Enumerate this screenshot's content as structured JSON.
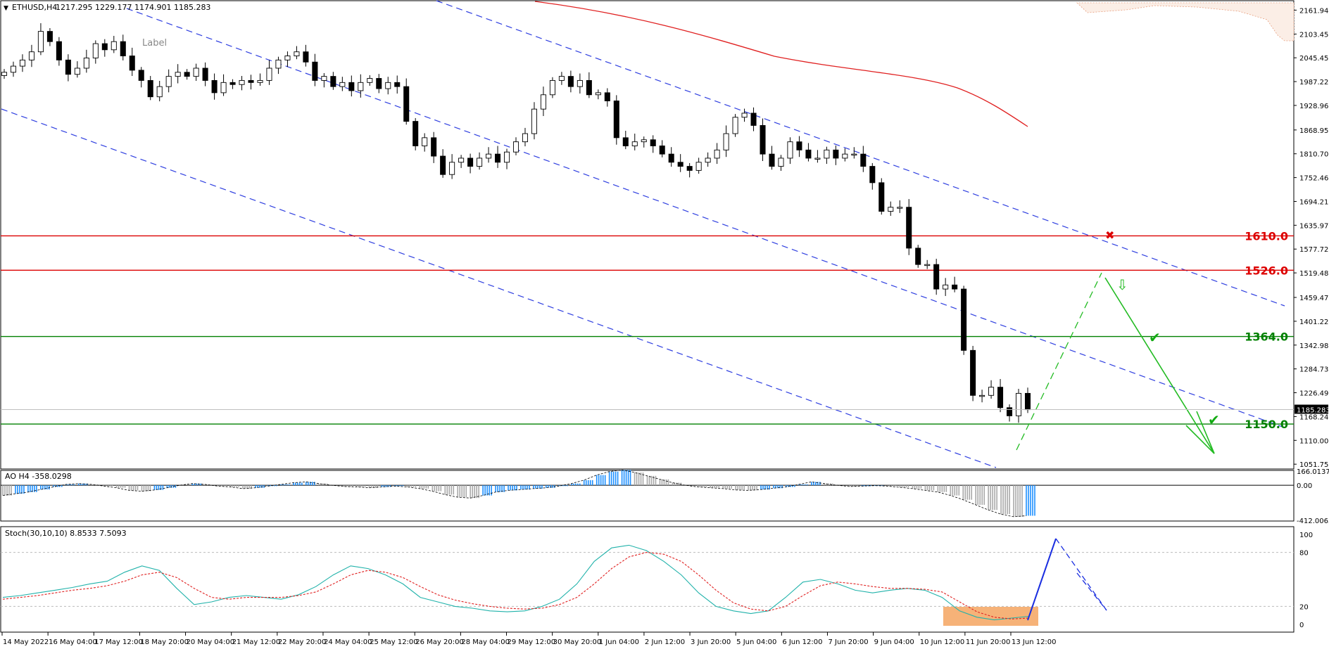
{
  "chart_data": [
    {
      "type": "candlestick",
      "symbol_label": "ETHUSD,H4",
      "ohlc_label": "1217.295 1229.177 1174.901 1185.283",
      "object_label": "Label",
      "ylim": [
        1040,
        2185
      ],
      "y_ticks": [
        "2161.940",
        "2103.455",
        "2045.450",
        "1987.220",
        "1928.960",
        "1868.950",
        "1810.705",
        "1752.460",
        "1694.215",
        "1635.970",
        "1577.725",
        "1519.480",
        "1459.470",
        "1401.225",
        "1342.980",
        "1284.735",
        "1226.490",
        "1168.245",
        "1110.000",
        "1051.755"
      ],
      "current_price_label": "1185.283",
      "x_ticks": [
        "14 May 2022",
        "16 May 04:00",
        "17 May 12:00",
        "18 May 20:00",
        "20 May 04:00",
        "21 May 12:00",
        "22 May 20:00",
        "24 May 04:00",
        "25 May 12:00",
        "26 May 20:00",
        "28 May 04:00",
        "29 May 12:00",
        "30 May 20:00",
        "1 Jun 04:00",
        "2 Jun 12:00",
        "3 Jun 20:00",
        "5 Jun 04:00",
        "6 Jun 12:00",
        "7 Jun 20:00",
        "9 Jun 04:00",
        "10 Jun 12:00",
        "11 Jun 20:00",
        "13 Jun 12:00"
      ],
      "levels": [
        {
          "value": 1610,
          "label": "1610.0",
          "color": "#dd0000"
        },
        {
          "value": 1526,
          "label": "1526.0",
          "color": "#dd0000"
        },
        {
          "value": 1364,
          "label": "1364.0",
          "color": "#008000"
        },
        {
          "value": 1150,
          "label": "1150.0",
          "color": "#008000"
        }
      ],
      "candles_close": [
        2010,
        2025,
        2040,
        2060,
        2110,
        2085,
        2040,
        2005,
        2020,
        2045,
        2080,
        2065,
        2085,
        2050,
        2015,
        1990,
        1950,
        1975,
        2000,
        2010,
        2000,
        2020,
        1990,
        1960,
        1985,
        1980,
        1990,
        1985,
        1990,
        2020,
        2040,
        2050,
        2060,
        2035,
        1990,
        2000,
        1975,
        1985,
        1965,
        1985,
        1995,
        1970,
        1985,
        1975,
        1890,
        1830,
        1850,
        1805,
        1760,
        1790,
        1800,
        1780,
        1800,
        1810,
        1790,
        1815,
        1840,
        1860,
        1920,
        1955,
        1990,
        2000,
        1975,
        1990,
        1955,
        1960,
        1940,
        1850,
        1830,
        1840,
        1845,
        1830,
        1810,
        1790,
        1780,
        1770,
        1790,
        1800,
        1820,
        1860,
        1900,
        1910,
        1880,
        1810,
        1780,
        1800,
        1840,
        1820,
        1800,
        1800,
        1820,
        1800,
        1810,
        1810,
        1780,
        1740,
        1670,
        1680,
        1680,
        1580,
        1540,
        1540,
        1480,
        1490,
        1480,
        1330,
        1220,
        1220,
        1240,
        1190,
        1170,
        1225,
        1185
      ]
    },
    {
      "type": "bar",
      "label": "AO H4  -358.0298",
      "y_ticks": [
        "166.0137",
        "0.00",
        "-412.0063"
      ],
      "ylim": [
        -412.0063,
        166.0137
      ],
      "values": [
        -120,
        -100,
        -80,
        -50,
        -20,
        10,
        20,
        10,
        -10,
        -30,
        -60,
        -70,
        -55,
        -30,
        0,
        20,
        10,
        -10,
        -20,
        -40,
        -30,
        -10,
        10,
        30,
        40,
        20,
        0,
        -15,
        -20,
        -30,
        -20,
        -10,
        -20,
        -40,
        -70,
        -110,
        -140,
        -150,
        -120,
        -80,
        -60,
        -50,
        -40,
        -30,
        -10,
        20,
        60,
        120,
        160,
        180,
        150,
        110,
        70,
        30,
        0,
        -20,
        -30,
        -40,
        -55,
        -60,
        -50,
        -35,
        -20,
        10,
        40,
        20,
        0,
        -15,
        -10,
        -5,
        -10,
        -25,
        -40,
        -60,
        -80,
        -120,
        -170,
        -230,
        -290,
        -340,
        -370,
        -358
      ]
    },
    {
      "type": "line",
      "label": "Stoch(30,10,10) 8.8533 7.5093",
      "y_ticks": [
        "100",
        "80",
        "20",
        "0"
      ],
      "ylim": [
        0,
        100
      ],
      "series": [
        {
          "color": "#20b2aa",
          "values": [
            30,
            32,
            35,
            38,
            41,
            45,
            48,
            58,
            65,
            60,
            40,
            22,
            25,
            30,
            32,
            30,
            28,
            33,
            42,
            55,
            65,
            62,
            55,
            45,
            30,
            25,
            20,
            18,
            15,
            14,
            15,
            20,
            28,
            45,
            70,
            85,
            88,
            82,
            70,
            55,
            35,
            20,
            15,
            12,
            15,
            30,
            47,
            50,
            45,
            38,
            35,
            38,
            40,
            38,
            30,
            15,
            8,
            5,
            7,
            9
          ]
        },
        {
          "color": "#e02020",
          "values": [
            28,
            30,
            32,
            35,
            38,
            40,
            43,
            48,
            55,
            58,
            52,
            40,
            30,
            28,
            30,
            30,
            30,
            32,
            36,
            45,
            55,
            60,
            58,
            52,
            42,
            33,
            27,
            23,
            20,
            18,
            17,
            18,
            22,
            30,
            45,
            62,
            75,
            80,
            78,
            70,
            55,
            38,
            24,
            17,
            15,
            20,
            32,
            43,
            47,
            45,
            42,
            40,
            40,
            39,
            36,
            25,
            14,
            8,
            6,
            7
          ]
        }
      ]
    }
  ]
}
